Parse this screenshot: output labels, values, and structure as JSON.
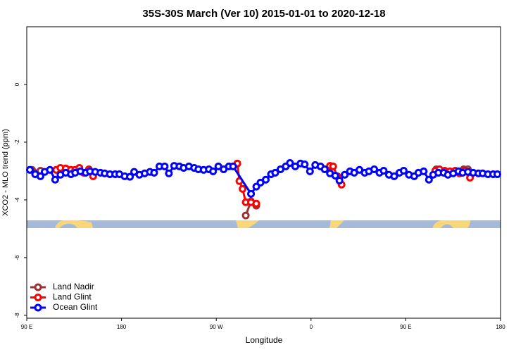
{
  "chart_data": {
    "type": "line",
    "title": "35S-30S March (Ver 10)   2015-01-01 to 2020-12-18",
    "x_label": "Longitude",
    "y_label": "XCO2 - MLO trend (ppm)",
    "xlim": [
      90,
      540
    ],
    "ylim": [
      -8.1,
      2
    ],
    "xticks": [
      {
        "value": 90,
        "label": "90 E"
      },
      {
        "value": 180,
        "label": "180"
      },
      {
        "value": 270,
        "label": "90 W"
      },
      {
        "value": 360,
        "label": "0"
      },
      {
        "value": 450,
        "label": "90 E"
      },
      {
        "value": 540,
        "label": "180"
      }
    ],
    "yticks": [
      0,
      -2,
      -4,
      -6,
      -8
    ],
    "legend": "bottom-left",
    "series": [
      {
        "name": "Land Nadir",
        "color": "#993333",
        "x": [
          95,
          103,
          123,
          128,
          null,
          298,
          303,
          308,
          null,
          479,
          505,
          509
        ],
        "values": [
          -2.96,
          -2.99,
          -2.96,
          -2.94,
          null,
          -4.54,
          -4.05,
          -4.2,
          null,
          -2.94,
          -2.94,
          -2.94
        ]
      },
      {
        "name": "Land Glint",
        "color": "#ff0000",
        "x": [
          118,
          122,
          127,
          132,
          136,
          140,
          144,
          149,
          153,
          null,
          290,
          292,
          295,
          298,
          303,
          308,
          null,
          378,
          381,
          385,
          389,
          null,
          478,
          482,
          487,
          492,
          497,
          501,
          506,
          511
        ],
        "values": [
          -2.96,
          -2.89,
          -2.91,
          -2.96,
          -2.96,
          -2.89,
          -3.06,
          -2.94,
          -3.18,
          null,
          -2.74,
          -3.35,
          -3.62,
          -4.08,
          -4.08,
          -4.13,
          null,
          -2.82,
          -2.84,
          -3.18,
          -3.47,
          null,
          -2.99,
          -2.94,
          -2.99,
          -3.01,
          -2.99,
          -3.08,
          -2.99,
          -3.23
        ]
      },
      {
        "name": "Ocean Glint",
        "color": "#0000ff",
        "x": [
          93,
          98,
          103,
          107,
          112,
          117,
          122,
          127,
          132,
          136,
          141,
          146,
          150,
          155,
          160,
          164,
          169,
          174,
          178,
          183,
          188,
          192,
          197,
          202,
          207,
          211,
          216,
          221,
          225,
          230,
          235,
          239,
          244,
          249,
          253,
          258,
          263,
          267,
          272,
          277,
          282,
          286,
          303,
          308,
          312,
          317,
          322,
          326,
          331,
          336,
          340,
          345,
          350,
          354,
          359,
          364,
          369,
          373,
          378,
          383,
          387,
          392,
          397,
          401,
          406,
          411,
          415,
          420,
          425,
          429,
          434,
          439,
          444,
          448,
          453,
          458,
          462,
          467,
          472,
          476,
          481,
          486,
          490,
          495,
          500,
          504,
          509,
          514,
          519,
          523,
          528,
          533,
          537
        ],
        "values": [
          -2.96,
          -3.11,
          -3.18,
          -3.03,
          -2.96,
          -3.3,
          -3.13,
          -3.06,
          -3.11,
          -3.06,
          -3.01,
          -3.06,
          -3.01,
          -3.03,
          -3.06,
          -3.08,
          -3.11,
          -3.11,
          -3.11,
          -3.18,
          -3.2,
          -3.03,
          -3.13,
          -3.08,
          -3.03,
          -3.06,
          -2.84,
          -2.84,
          -3.08,
          -2.82,
          -2.84,
          -2.89,
          -2.84,
          -2.89,
          -2.94,
          -2.96,
          -2.94,
          -3.01,
          -2.84,
          -2.94,
          -2.84,
          -2.84,
          -3.79,
          -3.54,
          -3.4,
          -3.3,
          -3.11,
          -3.06,
          -2.94,
          -2.84,
          -2.72,
          -2.84,
          -2.74,
          -2.77,
          -3.01,
          -2.79,
          -2.84,
          -2.94,
          -3.08,
          -3.16,
          -3.33,
          -3.13,
          -3.01,
          -3.06,
          -2.96,
          -3.06,
          -3.01,
          -2.94,
          -3.06,
          -2.99,
          -3.13,
          -3.18,
          -3.06,
          -2.99,
          -3.13,
          -3.18,
          -3.06,
          -3.01,
          -3.3,
          -3.13,
          -3.06,
          -3.06,
          -3.13,
          -3.08,
          -3.01,
          -3.06,
          -3.03,
          -3.06,
          -3.08,
          -3.08,
          -3.11,
          -3.11,
          -3.11
        ]
      }
    ]
  }
}
